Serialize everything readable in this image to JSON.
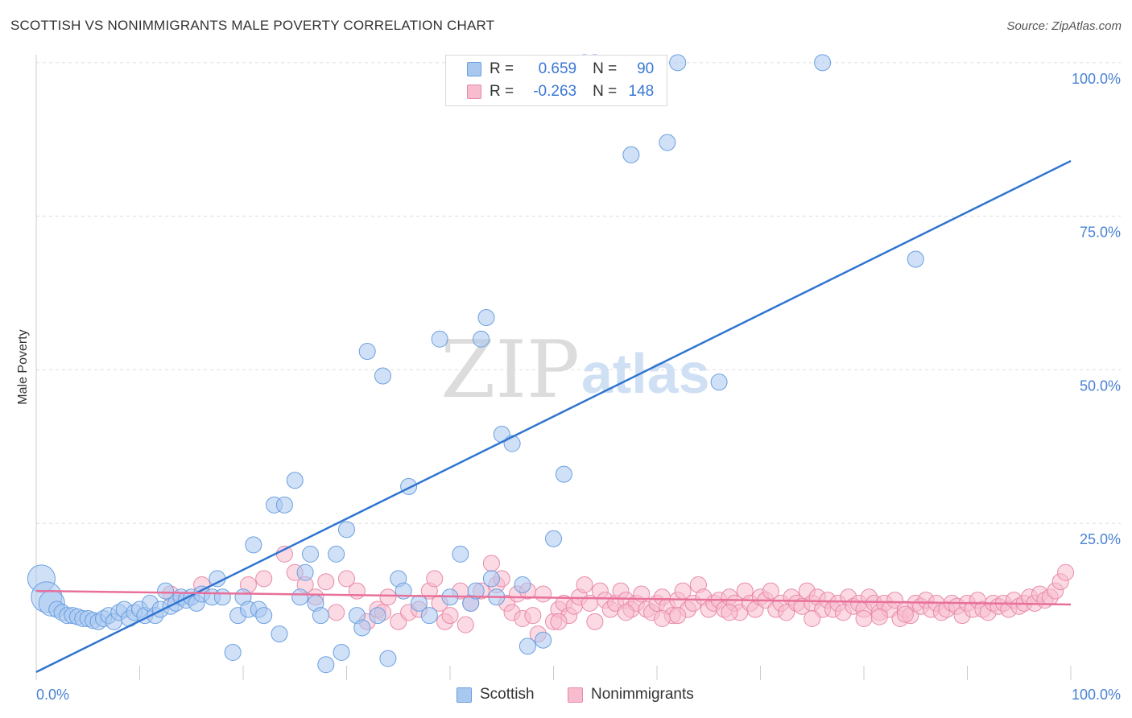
{
  "title": "SCOTTISH VS NONIMMIGRANTS MALE POVERTY CORRELATION CHART",
  "source": "Source: ZipAtlas.com",
  "watermark": {
    "zip": "ZIP",
    "atlas": "atlas"
  },
  "legend": {
    "r_label": "R =",
    "n_label": "N =",
    "rows": [
      {
        "name": "Scottish",
        "r": "0.659",
        "n": "90",
        "color": "#a9c8f0",
        "stroke": "#6a9fe0"
      },
      {
        "name": "Nonimmigrants",
        "r": "-0.263",
        "n": "148",
        "color": "#f7bccd",
        "stroke": "#e88aa8"
      }
    ]
  },
  "chart_data": {
    "type": "scatter",
    "title": "SCOTTISH VS NONIMMIGRANTS MALE POVERTY CORRELATION CHART",
    "xlabel": "",
    "ylabel": "Male Poverty",
    "xlim": [
      0,
      100
    ],
    "ylim": [
      0,
      100
    ],
    "x_tick_labels": [
      "0.0%",
      "100.0%"
    ],
    "y_tick_labels": [
      "25.0%",
      "50.0%",
      "75.0%",
      "100.0%"
    ],
    "y_ticks": [
      25,
      50,
      75,
      100
    ],
    "series": [
      {
        "name": "Scottish",
        "color": "#a9c8f0",
        "stroke": "#6a9fe0",
        "line_color": "#2f74d0",
        "trend": {
          "x0": 0,
          "y0": 0.8,
          "x1": 100,
          "y1": 84
        },
        "points": [
          [
            0.5,
            16
          ],
          [
            1,
            13
          ],
          [
            1.5,
            12
          ],
          [
            2,
            11
          ],
          [
            2.5,
            10.5
          ],
          [
            3,
            10
          ],
          [
            3.5,
            10
          ],
          [
            4,
            9.8
          ],
          [
            4.5,
            9.5
          ],
          [
            5,
            9.5
          ],
          [
            5.5,
            9.2
          ],
          [
            6,
            9
          ],
          [
            6.5,
            9.5
          ],
          [
            7,
            10
          ],
          [
            7.5,
            9
          ],
          [
            8,
            10.5
          ],
          [
            8.5,
            11
          ],
          [
            9,
            9.5
          ],
          [
            9.5,
            10.5
          ],
          [
            10,
            11
          ],
          [
            10.5,
            10
          ],
          [
            11,
            12
          ],
          [
            11.5,
            10
          ],
          [
            12,
            11
          ],
          [
            12.5,
            14
          ],
          [
            13,
            11.5
          ],
          [
            13.5,
            12
          ],
          [
            14,
            13
          ],
          [
            14.5,
            12.5
          ],
          [
            15,
            13
          ],
          [
            15.5,
            12
          ],
          [
            16,
            13.5
          ],
          [
            17,
            13
          ],
          [
            17.5,
            16
          ],
          [
            18,
            13
          ],
          [
            19,
            4
          ],
          [
            19.5,
            10
          ],
          [
            20,
            13
          ],
          [
            20.5,
            11
          ],
          [
            21,
            21.5
          ],
          [
            21.5,
            11
          ],
          [
            22,
            10
          ],
          [
            23,
            28
          ],
          [
            23.5,
            7
          ],
          [
            24,
            28
          ],
          [
            25,
            32
          ],
          [
            25.5,
            13
          ],
          [
            26,
            17
          ],
          [
            26.5,
            20
          ],
          [
            27,
            12
          ],
          [
            27.5,
            10
          ],
          [
            28,
            2
          ],
          [
            29,
            20
          ],
          [
            29.5,
            4
          ],
          [
            30,
            24
          ],
          [
            31,
            10
          ],
          [
            31.5,
            8
          ],
          [
            32,
            53
          ],
          [
            33,
            10
          ],
          [
            33.5,
            49
          ],
          [
            34,
            3
          ],
          [
            35,
            16
          ],
          [
            35.5,
            14
          ],
          [
            36,
            31
          ],
          [
            37,
            12
          ],
          [
            38,
            10
          ],
          [
            39,
            55
          ],
          [
            40,
            13
          ],
          [
            41,
            20
          ],
          [
            42,
            12
          ],
          [
            42.5,
            14
          ],
          [
            43,
            55
          ],
          [
            43.5,
            58.5
          ],
          [
            44,
            16
          ],
          [
            44.5,
            13
          ],
          [
            45,
            39.5
          ],
          [
            46,
            38
          ],
          [
            47,
            15
          ],
          [
            47.5,
            5
          ],
          [
            49,
            6
          ],
          [
            50,
            22.5
          ],
          [
            51,
            33
          ],
          [
            53,
            100
          ],
          [
            54,
            100
          ],
          [
            57.5,
            85
          ],
          [
            61,
            87
          ],
          [
            62,
            100
          ],
          [
            66,
            48
          ],
          [
            76,
            100
          ],
          [
            85,
            68
          ]
        ]
      },
      {
        "name": "Nonimmigrants",
        "color": "#f7bccd",
        "stroke": "#e88aa8",
        "line_color": "#e8709a",
        "trend": {
          "x0": 0,
          "y0": 14,
          "x1": 100,
          "y1": 11.8
        },
        "points": [
          [
            13,
            13.5
          ],
          [
            16,
            15
          ],
          [
            22,
            16
          ],
          [
            24,
            20
          ],
          [
            25,
            17
          ],
          [
            26,
            15
          ],
          [
            27,
            13
          ],
          [
            28,
            15.5
          ],
          [
            29,
            10.5
          ],
          [
            30,
            16
          ],
          [
            31,
            14
          ],
          [
            32,
            9
          ],
          [
            33,
            11
          ],
          [
            34,
            13
          ],
          [
            35,
            9
          ],
          [
            36,
            10.5
          ],
          [
            37,
            11
          ],
          [
            38,
            14
          ],
          [
            38.5,
            16
          ],
          [
            39,
            12
          ],
          [
            39.5,
            9
          ],
          [
            40,
            10
          ],
          [
            41,
            14
          ],
          [
            41.5,
            8.5
          ],
          [
            42,
            12
          ],
          [
            43,
            14
          ],
          [
            44,
            18.5
          ],
          [
            44.5,
            15
          ],
          [
            45,
            16
          ],
          [
            45.5,
            12
          ],
          [
            46,
            10.5
          ],
          [
            46.5,
            13.5
          ],
          [
            47,
            9.5
          ],
          [
            47.5,
            14
          ],
          [
            48,
            10
          ],
          [
            48.5,
            7
          ],
          [
            49,
            13.5
          ],
          [
            50,
            9
          ],
          [
            50.5,
            11
          ],
          [
            51,
            12
          ],
          [
            51.5,
            10
          ],
          [
            52,
            11.5
          ],
          [
            52.5,
            13
          ],
          [
            53,
            15
          ],
          [
            53.5,
            12
          ],
          [
            54,
            9
          ],
          [
            54.5,
            14
          ],
          [
            55,
            12.5
          ],
          [
            55.5,
            11
          ],
          [
            56,
            12
          ],
          [
            56.5,
            14
          ],
          [
            57,
            12.5
          ],
          [
            57.5,
            11
          ],
          [
            58,
            12
          ],
          [
            58.5,
            13.5
          ],
          [
            59,
            11
          ],
          [
            59.5,
            10.5
          ],
          [
            60,
            12
          ],
          [
            60.5,
            13
          ],
          [
            61,
            11.5
          ],
          [
            61.5,
            10
          ],
          [
            62,
            12.5
          ],
          [
            62.5,
            14
          ],
          [
            63,
            11
          ],
          [
            63.5,
            12
          ],
          [
            64,
            15
          ],
          [
            64.5,
            13
          ],
          [
            65,
            11
          ],
          [
            65.5,
            12
          ],
          [
            66,
            12.5
          ],
          [
            66.5,
            11
          ],
          [
            67,
            13
          ],
          [
            67.5,
            12
          ],
          [
            68,
            10.5
          ],
          [
            68.5,
            14
          ],
          [
            69,
            12
          ],
          [
            69.5,
            11
          ],
          [
            70,
            13
          ],
          [
            70.5,
            12.5
          ],
          [
            71,
            14
          ],
          [
            71.5,
            11
          ],
          [
            72,
            12
          ],
          [
            72.5,
            10.5
          ],
          [
            73,
            13
          ],
          [
            73.5,
            12
          ],
          [
            74,
            11.5
          ],
          [
            74.5,
            14
          ],
          [
            75,
            12
          ],
          [
            75.5,
            13
          ],
          [
            76,
            11
          ],
          [
            76.5,
            12.5
          ],
          [
            77,
            11
          ],
          [
            77.5,
            12
          ],
          [
            78,
            10.5
          ],
          [
            78.5,
            13
          ],
          [
            79,
            11.5
          ],
          [
            79.5,
            12
          ],
          [
            80,
            11
          ],
          [
            80.5,
            13
          ],
          [
            81,
            12
          ],
          [
            81.5,
            10.5
          ],
          [
            82,
            12
          ],
          [
            82.5,
            11
          ],
          [
            83,
            12.5
          ],
          [
            83.5,
            9.5
          ],
          [
            84,
            11
          ],
          [
            84.5,
            10
          ],
          [
            85,
            12
          ],
          [
            85.5,
            11.5
          ],
          [
            86,
            12.5
          ],
          [
            86.5,
            11
          ],
          [
            87,
            12
          ],
          [
            87.5,
            10.5
          ],
          [
            88,
            11
          ],
          [
            88.5,
            12
          ],
          [
            89,
            11.5
          ],
          [
            89.5,
            10
          ],
          [
            90,
            12
          ],
          [
            90.5,
            11
          ],
          [
            91,
            12.5
          ],
          [
            91.5,
            11
          ],
          [
            92,
            10.5
          ],
          [
            92.5,
            12
          ],
          [
            93,
            11.5
          ],
          [
            93.5,
            12
          ],
          [
            94,
            11
          ],
          [
            94.5,
            12.5
          ],
          [
            95,
            11.5
          ],
          [
            95.5,
            12
          ],
          [
            96,
            13
          ],
          [
            96.5,
            12
          ],
          [
            97,
            13.5
          ],
          [
            97.5,
            12.5
          ],
          [
            98,
            13
          ],
          [
            98.5,
            14
          ],
          [
            99,
            15.5
          ],
          [
            99.5,
            17
          ],
          [
            20.5,
            15
          ],
          [
            33.5,
            10.5
          ],
          [
            50.5,
            9
          ],
          [
            57,
            10.5
          ],
          [
            60.5,
            9.5
          ],
          [
            62,
            10
          ],
          [
            67,
            10.5
          ],
          [
            75,
            9.5
          ],
          [
            80,
            9.5
          ],
          [
            81.5,
            9.8
          ],
          [
            84,
            10.2
          ]
        ]
      }
    ]
  }
}
